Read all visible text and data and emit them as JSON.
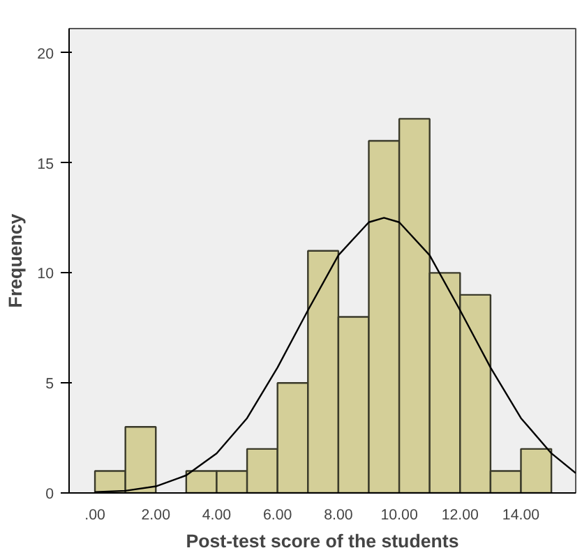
{
  "chart_data": {
    "type": "histogram",
    "xlabel": "Post-test score of the students",
    "ylabel": "Frequency",
    "bins": [
      0,
      1,
      2,
      3,
      4,
      5,
      6,
      7,
      8,
      9,
      10,
      11,
      12,
      13,
      14,
      15
    ],
    "values": [
      1,
      3,
      0,
      1,
      1,
      2,
      5,
      11,
      8,
      16,
      17,
      10,
      9,
      1,
      2
    ],
    "color": "#d4cf98",
    "series": [
      {
        "type": "line",
        "color": "#000000",
        "x": [
          0,
          1,
          2,
          3,
          4,
          5,
          6,
          7,
          8,
          9,
          9.5,
          10,
          11,
          12,
          13,
          14,
          15,
          15.8
        ],
        "values": [
          0.04,
          0.1,
          0.3,
          0.8,
          1.8,
          3.4,
          5.7,
          8.3,
          10.8,
          12.3,
          12.5,
          12.3,
          10.8,
          8.3,
          5.7,
          3.4,
          1.8,
          0.9
        ]
      }
    ],
    "xlim": [
      -0.85,
      15.8
    ],
    "ylim": [
      0,
      21.1
    ],
    "xticks": [
      {
        "value": 0,
        "label": ".00"
      },
      {
        "value": 2,
        "label": "2.00"
      },
      {
        "value": 4,
        "label": "4.00"
      },
      {
        "value": 6,
        "label": "6.00"
      },
      {
        "value": 8,
        "label": "8.00"
      },
      {
        "value": 10,
        "label": "10.00"
      },
      {
        "value": 12,
        "label": "12.00"
      },
      {
        "value": 14,
        "label": "14.00"
      }
    ],
    "yticks": [
      0,
      5,
      10,
      15,
      20
    ],
    "grid": false
  }
}
